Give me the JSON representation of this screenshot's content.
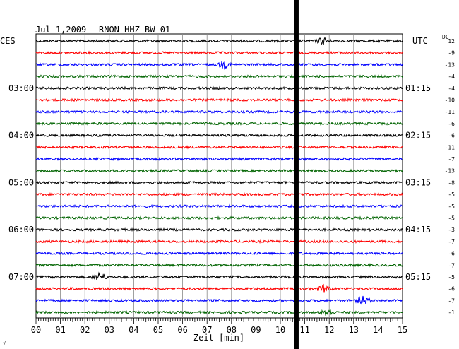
{
  "header": {
    "date": "Jul 1,2009",
    "station": "RNON HHZ BW 01",
    "left_zone": "CES",
    "right_zone": "UTC",
    "dc_label": "DC",
    "x_axis_label": "Zeit [min]",
    "corner_mark": "√"
  },
  "colors": {
    "black": "#000000",
    "red": "#ff0000",
    "blue": "#0000ff",
    "green": "#006400",
    "grid": "#888888"
  },
  "chart_data": {
    "type": "line",
    "title": "Jul 1,2009   RNON HHZ BW 01",
    "xlabel": "Zeit [min]",
    "xlim": [
      0,
      15
    ],
    "x_ticks": [
      "00",
      "01",
      "02",
      "03",
      "04",
      "05",
      "06",
      "07",
      "08",
      "09",
      "10",
      "11",
      "12",
      "13",
      "14",
      "15"
    ],
    "left_time_labels": [
      {
        "row": 4,
        "text": "03:00"
      },
      {
        "row": 8,
        "text": "04:00"
      },
      {
        "row": 12,
        "text": "05:00"
      },
      {
        "row": 16,
        "text": "06:00"
      },
      {
        "row": 20,
        "text": "07:00"
      }
    ],
    "right_time_labels": [
      {
        "row": 4,
        "text": "01:15"
      },
      {
        "row": 8,
        "text": "02:15"
      },
      {
        "row": 12,
        "text": "03:15"
      },
      {
        "row": 16,
        "text": "04:15"
      },
      {
        "row": 20,
        "text": "05:15"
      }
    ],
    "dc_offsets": [
      "12",
      "-9",
      "-13",
      "-4",
      "-4",
      "-10",
      "-11",
      "-6",
      "-6",
      "-11",
      "-7",
      "-13",
      "-8",
      "-5",
      "-5",
      "-5",
      "-3",
      "-7",
      "-6",
      "-7",
      "-5",
      "-6",
      "-7",
      "-1"
    ],
    "trace_colors": [
      "black",
      "red",
      "blue",
      "green"
    ],
    "gap_minutes": [
      10.55,
      10.75
    ],
    "events": [
      {
        "row": 0,
        "minute": 11.75,
        "amplitude": "small"
      },
      {
        "row": 2,
        "minute": 7.7,
        "amplitude": "small"
      },
      {
        "row": 20,
        "minute": 2.6,
        "amplitude": "medium"
      },
      {
        "row": 21,
        "minute": 11.8,
        "amplitude": "small"
      },
      {
        "row": 22,
        "minute": 13.4,
        "amplitude": "medium"
      },
      {
        "row": 23,
        "minute": 11.9,
        "amplitude": "small"
      }
    ]
  }
}
